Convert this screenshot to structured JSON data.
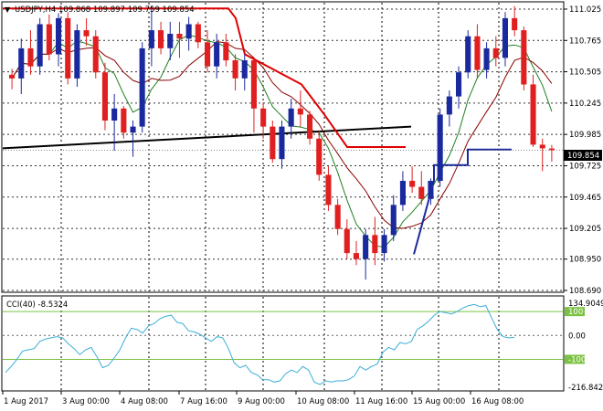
{
  "chart_data": [
    {
      "type": "candlestick",
      "title": "USDJPY,H4  109.868 109.897 109.759 109.854",
      "symbol": "USDJPY",
      "timeframe": "H4",
      "ohlc_header": [
        109.868,
        109.897,
        109.759,
        109.854
      ],
      "current_price": "109.854",
      "ylim": [
        108.69,
        111.04
      ],
      "y_ticks": [
        "111.025",
        "110.765",
        "110.505",
        "110.245",
        "109.985",
        "109.725",
        "109.465",
        "109.205",
        "108.950",
        "108.690"
      ],
      "x_ticks": [
        "1 Aug 2017",
        "3 Aug 00:00",
        "4 Aug 08:00",
        "7 Aug 16:00",
        "9 Aug 00:00",
        "10 Aug 08:00",
        "11 Aug 16:00",
        "15 Aug 00:00",
        "16 Aug 08:00"
      ],
      "grid": true,
      "colors": {
        "bull": "#1a2a9e",
        "bear": "#e02020",
        "ma_fast": "#208020",
        "ma_slow": "#8b0000",
        "trend_line": "#000000",
        "stop_red": "#e00000",
        "stop_blue": "#1a2a9e"
      },
      "candles": [
        [
          110.48,
          110.53,
          110.36,
          110.45
        ],
        [
          110.45,
          110.78,
          110.32,
          110.7
        ],
        [
          110.7,
          110.85,
          110.48,
          110.55
        ],
        [
          110.55,
          110.95,
          110.48,
          110.9
        ],
        [
          110.9,
          110.98,
          110.6,
          110.65
        ],
        [
          110.65,
          110.99,
          110.55,
          110.95
        ],
        [
          110.95,
          111.0,
          110.4,
          110.45
        ],
        [
          110.45,
          110.9,
          110.38,
          110.85
        ],
        [
          110.85,
          110.95,
          110.72,
          110.8
        ],
        [
          110.8,
          110.85,
          110.45,
          110.5
        ],
        [
          110.5,
          110.58,
          110.02,
          110.1
        ],
        [
          110.1,
          110.32,
          109.85,
          110.2
        ],
        [
          110.2,
          110.22,
          109.95,
          110.0
        ],
        [
          110.0,
          110.1,
          109.8,
          110.05
        ],
        [
          110.05,
          110.75,
          110.0,
          110.7
        ],
        [
          110.7,
          111.05,
          110.55,
          110.85
        ],
        [
          110.85,
          110.92,
          110.65,
          110.7
        ],
        [
          110.7,
          110.92,
          110.6,
          110.82
        ],
        [
          110.82,
          110.92,
          110.62,
          110.78
        ],
        [
          110.78,
          110.96,
          110.68,
          110.9
        ],
        [
          110.9,
          110.92,
          110.7,
          110.75
        ],
        [
          110.75,
          110.85,
          110.5,
          110.55
        ],
        [
          110.55,
          110.82,
          110.45,
          110.75
        ],
        [
          110.75,
          110.82,
          110.55,
          110.6
        ],
        [
          110.6,
          110.65,
          110.35,
          110.45
        ],
        [
          110.45,
          110.65,
          110.35,
          110.6
        ],
        [
          110.6,
          110.62,
          110.0,
          110.2
        ],
        [
          110.2,
          110.25,
          109.95,
          110.05
        ],
        [
          110.05,
          110.1,
          109.75,
          109.78
        ],
        [
          109.78,
          110.1,
          109.7,
          110.05
        ],
        [
          110.05,
          110.28,
          109.95,
          110.2
        ],
        [
          110.2,
          110.35,
          110.05,
          110.15
        ],
        [
          110.15,
          110.18,
          109.9,
          109.95
        ],
        [
          109.95,
          110.02,
          109.6,
          109.65
        ],
        [
          109.65,
          109.72,
          109.35,
          109.4
        ],
        [
          109.4,
          109.45,
          109.15,
          109.2
        ],
        [
          109.2,
          109.28,
          108.95,
          109.0
        ],
        [
          109.0,
          109.1,
          108.9,
          108.95
        ],
        [
          108.95,
          109.2,
          108.78,
          109.15
        ],
        [
          109.15,
          109.3,
          108.9,
          109.0
        ],
        [
          109.0,
          109.2,
          108.93,
          109.15
        ],
        [
          109.15,
          109.48,
          109.1,
          109.4
        ],
        [
          109.4,
          109.68,
          109.35,
          109.6
        ],
        [
          109.6,
          109.72,
          109.5,
          109.55
        ],
        [
          109.55,
          109.68,
          109.4,
          109.45
        ],
        [
          109.45,
          109.62,
          109.4,
          109.6
        ],
        [
          109.6,
          110.2,
          109.55,
          110.15
        ],
        [
          110.15,
          110.35,
          110.05,
          110.3
        ],
        [
          110.3,
          110.55,
          110.2,
          110.5
        ],
        [
          110.5,
          110.85,
          110.45,
          110.8
        ],
        [
          110.8,
          110.9,
          110.45,
          110.52
        ],
        [
          110.52,
          110.75,
          110.45,
          110.7
        ],
        [
          110.7,
          110.8,
          110.55,
          110.62
        ],
        [
          110.62,
          111.0,
          110.55,
          110.95
        ],
        [
          110.95,
          111.05,
          110.8,
          110.85
        ],
        [
          110.85,
          110.88,
          110.35,
          110.4
        ],
        [
          110.4,
          110.48,
          109.88,
          109.9
        ],
        [
          109.9,
          109.95,
          109.68,
          109.87
        ],
        [
          109.868,
          109.897,
          109.759,
          109.854
        ]
      ],
      "indicator": {
        "name": "CCI(40)",
        "label": "CCI(40) -8.5324",
        "value": -8.5324,
        "y_ticks": [
          "134.9049",
          "100",
          "0.00",
          "-100",
          "-216.8423"
        ],
        "levels": [
          100,
          -100
        ],
        "ylim": [
          -216.8423,
          134.9049
        ],
        "color": "#3aaed8",
        "values": [
          -155,
          -130,
          -100,
          -65,
          -60,
          -55,
          -25,
          -15,
          -10,
          -5,
          -10,
          -35,
          -55,
          -80,
          -60,
          -50,
          -90,
          -135,
          -125,
          -95,
          -60,
          -10,
          30,
          25,
          10,
          40,
          50,
          70,
          80,
          85,
          55,
          50,
          20,
          15,
          5,
          -10,
          -25,
          -5,
          -10,
          -55,
          -115,
          -135,
          -125,
          -155,
          -165,
          -185,
          -185,
          -195,
          -190,
          -160,
          -145,
          -155,
          -130,
          -145,
          -195,
          -205,
          -190,
          -195,
          -190,
          -190,
          -185,
          -170,
          -130,
          -145,
          -130,
          -120,
          -70,
          -50,
          -60,
          -30,
          -35,
          -25,
          25,
          40,
          60,
          85,
          100,
          95,
          90,
          100,
          115,
          125,
          130,
          120,
          125,
          75,
          25,
          -5,
          -10,
          -8.5324
        ]
      }
    }
  ]
}
